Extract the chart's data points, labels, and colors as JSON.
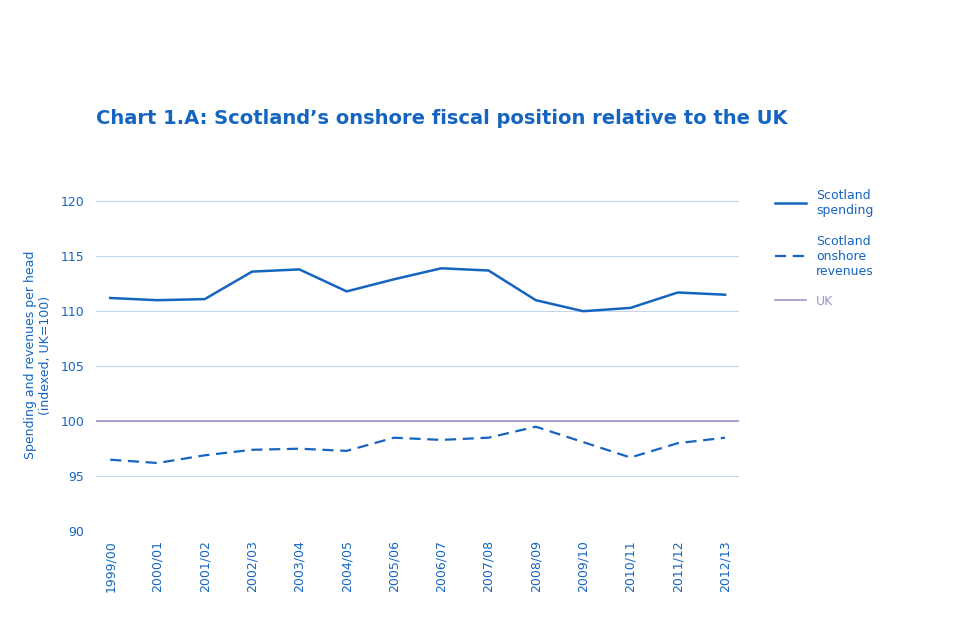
{
  "title": "Chart 1.A: Scotland’s onshore fiscal position relative to the UK",
  "ylabel": "Spending and revenues per head\n(indexed, UK=100)",
  "ylim": [
    90,
    122
  ],
  "yticks": [
    90,
    95,
    100,
    105,
    110,
    115,
    120
  ],
  "x_labels": [
    "1999/00",
    "2000/01",
    "2001/02",
    "2002/03",
    "2003/04",
    "2004/05",
    "2005/06",
    "2006/07",
    "2007/08",
    "2008/09",
    "2009/10",
    "2010/11",
    "2011/12",
    "2012/13"
  ],
  "scotland_spending": [
    111.2,
    111.0,
    111.1,
    113.6,
    113.8,
    111.8,
    112.9,
    113.9,
    113.7,
    111.0,
    110.0,
    110.3,
    111.7,
    111.5
  ],
  "scotland_onshore_revenues": [
    96.5,
    96.2,
    96.9,
    97.4,
    97.5,
    97.3,
    98.5,
    98.3,
    98.5,
    99.5,
    98.1,
    96.7,
    98.0,
    98.5
  ],
  "uk_value": 100,
  "line_color_solid": "#1565c0",
  "line_color_dashed": "#1565c0",
  "line_color_uk": "#9e94c8",
  "gridline_color": "#c5d5e8",
  "background_color": "#ffffff",
  "title_color": "#1565c0",
  "axis_label_color": "#1565c0",
  "tick_color": "#1565c0",
  "legend_labels": [
    "Scotland\nspending",
    "Scotland\nonshore\nrevenues",
    "UK"
  ],
  "title_fontsize": 14,
  "axis_label_fontsize": 9,
  "tick_fontsize": 9,
  "legend_fontsize": 9
}
